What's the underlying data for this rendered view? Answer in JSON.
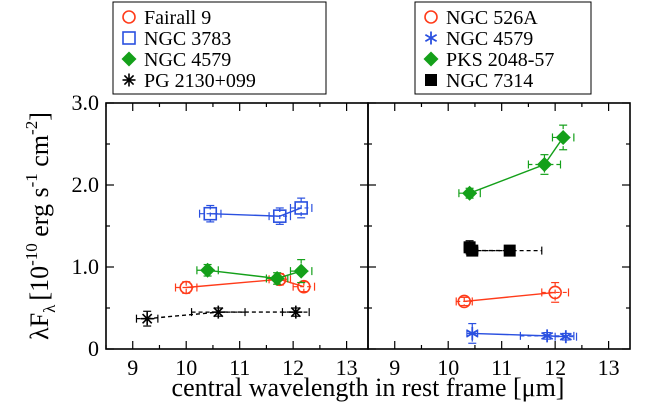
{
  "chart_data": [
    {
      "type": "line",
      "panel": "left",
      "xlabel": "central wavelength in rest frame [μm]",
      "ylabel": {
        "main": "λF",
        "sub": "λ",
        "bracket_open": "[10",
        "exp1": "-10",
        "mid": " erg s",
        "exp2": "-1",
        "mid2": " cm",
        "exp3": "-2",
        "bracket_close": "]"
      },
      "xlim": [
        8.5,
        13.4
      ],
      "ylim": [
        0,
        3.0
      ],
      "xticks": [
        "9",
        "10",
        "11",
        "12",
        "13"
      ],
      "yticks": [
        "0",
        "1.0",
        "2.0",
        "3.0"
      ],
      "legend": "top",
      "series": [
        {
          "name": "Fairall 9",
          "marker": "circle-open",
          "color": "#ff3b1a",
          "dash": false,
          "x": [
            10.0,
            11.75,
            12.2
          ],
          "y": [
            0.75,
            0.85,
            0.76
          ],
          "xerr": [
            0.2,
            0.2,
            0.2
          ],
          "yerr": [
            0.07,
            0.07,
            0.06
          ]
        },
        {
          "name": "NGC 3783",
          "marker": "square-open",
          "color": "#2a50e0",
          "dash": false,
          "x": [
            10.45,
            11.75,
            12.15
          ],
          "y": [
            1.65,
            1.62,
            1.72
          ],
          "xerr": [
            0.2,
            0.2,
            0.2
          ],
          "yerr": [
            0.1,
            0.1,
            0.12
          ]
        },
        {
          "name": "NGC 4579",
          "marker": "diamond-filled",
          "color": "#14a01a",
          "dash": false,
          "x": [
            10.4,
            11.7,
            12.15
          ],
          "y": [
            0.96,
            0.86,
            0.95
          ],
          "xerr": [
            0.2,
            0.2,
            0.2
          ],
          "yerr": [
            0.07,
            0.07,
            0.14
          ]
        },
        {
          "name": "PG 2130+099",
          "marker": "star",
          "color": "#000000",
          "dash": true,
          "x": [
            9.27,
            10.6,
            12.05
          ],
          "y": [
            0.37,
            0.45,
            0.45
          ],
          "xerr": [
            0.2,
            0.5,
            0.25
          ],
          "yerr": [
            0.09,
            0.05,
            0.05
          ]
        }
      ]
    },
    {
      "type": "line",
      "panel": "right",
      "xlabel": "central wavelength in rest frame [μm]",
      "xlim": [
        8.5,
        13.4
      ],
      "ylim": [
        0,
        3.0
      ],
      "xticks": [
        "9",
        "10",
        "11",
        "12",
        "13"
      ],
      "legend": "top",
      "series": [
        {
          "name": "NGC 526A",
          "marker": "circle-open",
          "color": "#ff3b1a",
          "dash": false,
          "x": [
            10.3,
            12.0
          ],
          "y": [
            0.58,
            0.69
          ],
          "xerr": [
            0.15,
            0.25
          ],
          "yerr": [
            0.05,
            0.12
          ]
        },
        {
          "name": "NGC 4579",
          "marker": "asterisk",
          "color": "#2a50e0",
          "dash": false,
          "x": [
            10.45,
            11.85,
            12.2
          ],
          "y": [
            0.19,
            0.16,
            0.15
          ],
          "xerr": [
            0.1,
            0.5,
            0.2
          ],
          "yerr": [
            0.12,
            0.04,
            0.04
          ]
        },
        {
          "name": "PKS 2048-57",
          "marker": "diamond-filled",
          "color": "#14a01a",
          "dash": false,
          "x": [
            10.4,
            11.8,
            12.15
          ],
          "y": [
            1.9,
            2.25,
            2.58
          ],
          "xerr": [
            0.2,
            0.3,
            0.2
          ],
          "yerr": [
            0.06,
            0.12,
            0.15
          ]
        },
        {
          "name": "NGC 7314",
          "marker": "square-filled",
          "color": "#000000",
          "dash": true,
          "x": [
            10.4,
            10.45,
            11.15
          ],
          "y": [
            1.24,
            1.2,
            1.2
          ],
          "xerr": [
            0.1,
            0.1,
            0.6
          ],
          "yerr": [
            0.08,
            0.05,
            0.04
          ]
        }
      ]
    }
  ]
}
